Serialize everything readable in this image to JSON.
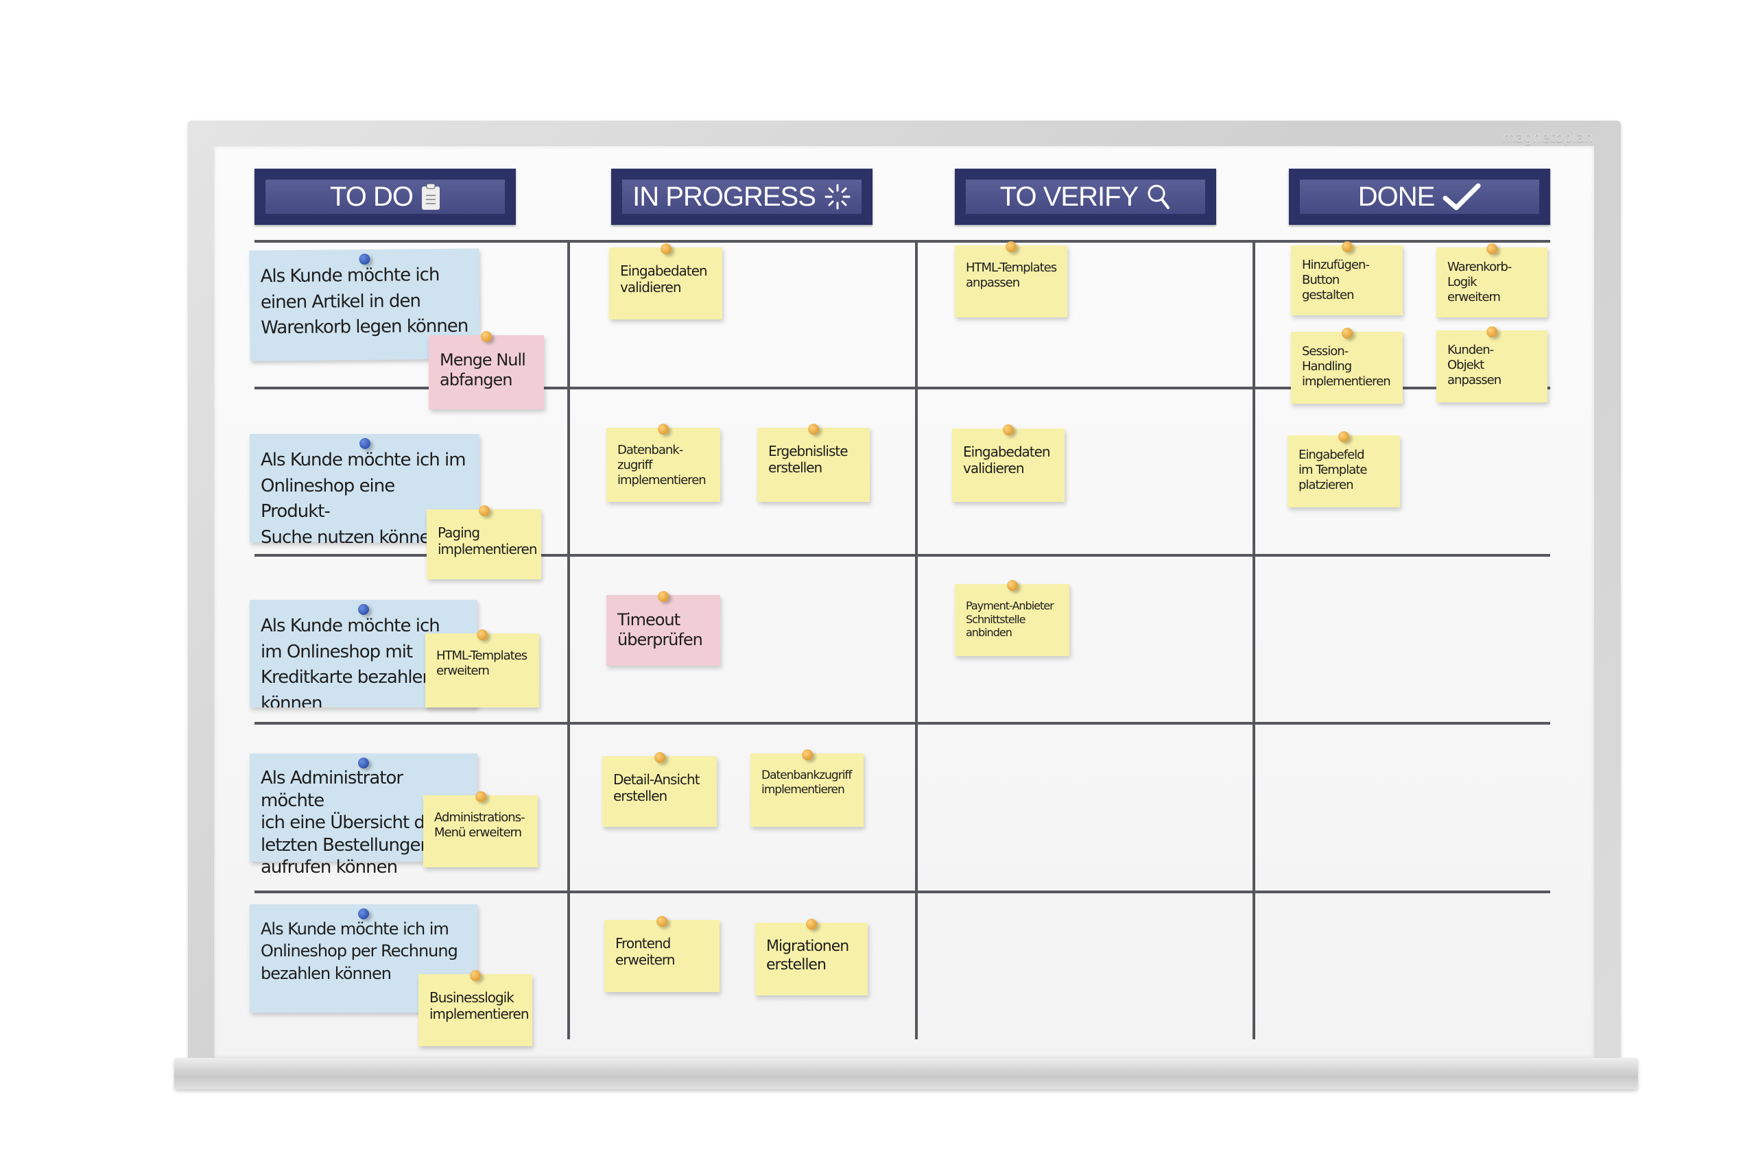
{
  "board": {
    "brand": "magnetoplan",
    "colors": {
      "header": "#2c3266",
      "story": "#cfe2ef",
      "task": "#f7f0a8",
      "bug": "#f1cdd6"
    },
    "columns": [
      {
        "label": "TO DO",
        "icon": "clipboard-icon"
      },
      {
        "label": "IN PROGRESS",
        "icon": "spinner-icon"
      },
      {
        "label": "TO VERIFY",
        "icon": "magnifier-icon"
      },
      {
        "label": "DONE",
        "icon": "checkmark-icon"
      }
    ],
    "stories": [
      "Als Kunde möchte ich\neinen Artikel in den\nWarenkorb legen können",
      "Als Kunde möchte ich im\nOnlineshop eine Produkt-\nSuche nutzen können",
      "Als Kunde möchte ich\nim Onlineshop mit\nKreditkarte bezahlen können",
      "Als Administrator möchte\nich eine Übersicht der\nletzten Bestellungen\naufrufen können",
      "Als Kunde möchte ich im\nOnlineshop per Rechnung\nbezahlen können"
    ],
    "todo": [
      "Menge Null\nabfangen",
      "Paging\nimplementieren",
      "HTML-Templates\nerweitern",
      "Administrations-\nMenü erweitern",
      "Businesslogik\nimplementieren"
    ],
    "in_progress": [
      "Eingabedaten\nvalidieren",
      "Datenbank-\nzugriff\nimplementieren",
      "Ergebnisliste\nerstellen",
      "Timeout\nüberprüfen",
      "Detail-Ansicht\nerstellen",
      "Datenbankzugriff\nimplementieren",
      "Frontend\nerweitern",
      "Migrationen\nerstellen"
    ],
    "to_verify": [
      "HTML-Templates\nanpassen",
      "Eingabedaten\nvalidieren",
      "Payment-Anbieter\nSchnittstelle\nanbinden"
    ],
    "done": [
      "Hinzufügen-\nButton\ngestalten",
      "Warenkorb-\nLogik\nerweitern",
      "Session-\nHandling\nimplementieren",
      "Kunden-\nObjekt\nanpassen",
      "Eingabefeld\nim Template\nplatzieren"
    ]
  }
}
